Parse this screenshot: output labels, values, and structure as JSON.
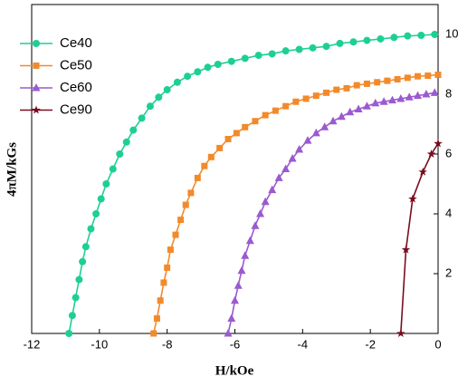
{
  "chart_data": {
    "type": "line",
    "x_label": "H/kOe",
    "y_label": "4πM/kGs",
    "xlim": [
      -12,
      0
    ],
    "xticks": [
      -12,
      -10,
      -8,
      -6,
      -4,
      -2,
      0
    ],
    "ylim": [
      0,
      11
    ],
    "yticks": [
      2,
      4,
      6,
      8,
      10
    ],
    "y_axis_side": "right",
    "legend": "upper left",
    "grid": false,
    "series": [
      {
        "name": "Ce40",
        "color": "#1ecf95",
        "marker": "circle",
        "x": [
          -10.9,
          -10.8,
          -10.7,
          -10.6,
          -10.5,
          -10.4,
          -10.25,
          -10.1,
          -9.95,
          -9.8,
          -9.6,
          -9.4,
          -9.2,
          -9.0,
          -8.75,
          -8.5,
          -8.25,
          -8.0,
          -7.7,
          -7.4,
          -7.1,
          -6.8,
          -6.5,
          -6.1,
          -5.7,
          -5.3,
          -4.9,
          -4.5,
          -4.1,
          -3.7,
          -3.3,
          -2.9,
          -2.5,
          -2.1,
          -1.7,
          -1.3,
          -0.9,
          -0.5,
          -0.1
        ],
        "values": [
          0,
          0.6,
          1.2,
          1.8,
          2.4,
          2.9,
          3.5,
          4.0,
          4.5,
          5.0,
          5.5,
          6.0,
          6.4,
          6.8,
          7.2,
          7.6,
          7.9,
          8.15,
          8.4,
          8.6,
          8.75,
          8.9,
          9.0,
          9.1,
          9.2,
          9.3,
          9.35,
          9.45,
          9.5,
          9.55,
          9.6,
          9.7,
          9.75,
          9.8,
          9.85,
          9.9,
          9.95,
          9.97,
          10.0
        ]
      },
      {
        "name": "Ce50",
        "color": "#f28a2b",
        "marker": "square",
        "x": [
          -8.4,
          -8.3,
          -8.2,
          -8.1,
          -8.0,
          -7.9,
          -7.75,
          -7.6,
          -7.45,
          -7.3,
          -7.1,
          -6.9,
          -6.7,
          -6.45,
          -6.2,
          -5.95,
          -5.7,
          -5.4,
          -5.1,
          -4.8,
          -4.5,
          -4.2,
          -3.9,
          -3.6,
          -3.3,
          -3.0,
          -2.7,
          -2.4,
          -2.1,
          -1.8,
          -1.5,
          -1.2,
          -0.9,
          -0.6,
          -0.3,
          0
        ],
        "values": [
          0,
          0.5,
          1.1,
          1.7,
          2.2,
          2.8,
          3.3,
          3.8,
          4.3,
          4.7,
          5.2,
          5.6,
          5.9,
          6.2,
          6.5,
          6.7,
          6.9,
          7.1,
          7.3,
          7.45,
          7.6,
          7.75,
          7.85,
          7.95,
          8.05,
          8.15,
          8.2,
          8.3,
          8.35,
          8.4,
          8.45,
          8.5,
          8.55,
          8.6,
          8.62,
          8.65
        ]
      },
      {
        "name": "Ce60",
        "color": "#9a5ad0",
        "marker": "triangle",
        "x": [
          -6.2,
          -6.1,
          -6.0,
          -5.9,
          -5.8,
          -5.7,
          -5.55,
          -5.4,
          -5.25,
          -5.1,
          -4.9,
          -4.7,
          -4.5,
          -4.3,
          -4.1,
          -3.85,
          -3.6,
          -3.35,
          -3.1,
          -2.85,
          -2.6,
          -2.35,
          -2.1,
          -1.85,
          -1.6,
          -1.35,
          -1.1,
          -0.85,
          -0.6,
          -0.35,
          -0.1
        ],
        "values": [
          0,
          0.5,
          1.1,
          1.6,
          2.1,
          2.6,
          3.1,
          3.6,
          4.0,
          4.4,
          4.8,
          5.2,
          5.5,
          5.85,
          6.15,
          6.45,
          6.7,
          6.9,
          7.1,
          7.25,
          7.4,
          7.5,
          7.6,
          7.7,
          7.75,
          7.8,
          7.85,
          7.9,
          7.95,
          8.0,
          8.05
        ]
      },
      {
        "name": "Ce90",
        "color": "#7a0c1e",
        "marker": "star",
        "x": [
          -1.1,
          -0.95,
          -0.75,
          -0.45,
          -0.2,
          0
        ],
        "values": [
          0,
          2.8,
          4.5,
          5.4,
          6.0,
          6.35
        ]
      }
    ]
  }
}
